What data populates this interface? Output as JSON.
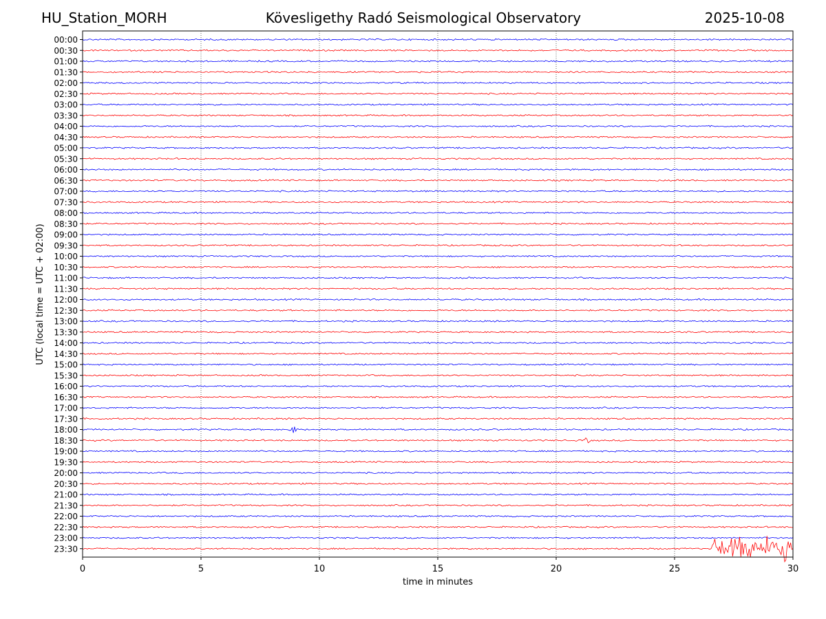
{
  "header": {
    "station": "HU_Station_MORH",
    "observatory": "Kövesligethy Radó Seismological Observatory",
    "date": "2025-10-08"
  },
  "chart_data": {
    "type": "line",
    "title": "Kövesligethy Radó Seismological Observatory",
    "xlabel": "time in minutes",
    "ylabel": "UTC (local time = UTC + 02:00)",
    "xlim": [
      0,
      30
    ],
    "xticks": [
      0,
      5,
      10,
      15,
      20,
      25,
      30
    ],
    "grid_x": true,
    "colors": {
      "even_row": "#0000ff",
      "odd_row": "#ff0000"
    },
    "rows": [
      "00:00",
      "00:30",
      "01:00",
      "01:30",
      "02:00",
      "02:30",
      "03:00",
      "03:30",
      "04:00",
      "04:30",
      "05:00",
      "05:30",
      "06:00",
      "06:30",
      "07:00",
      "07:30",
      "08:00",
      "08:30",
      "09:00",
      "09:30",
      "10:00",
      "10:30",
      "11:00",
      "11:30",
      "12:00",
      "12:30",
      "13:00",
      "13:30",
      "14:00",
      "14:30",
      "15:00",
      "15:30",
      "16:00",
      "16:30",
      "17:00",
      "17:30",
      "18:00",
      "18:30",
      "19:00",
      "19:30",
      "20:00",
      "20:30",
      "21:00",
      "21:30",
      "22:00",
      "22:30",
      "23:00",
      "23:30"
    ],
    "noise_amplitude_rows": 0.06,
    "events": [
      {
        "row": "18:00",
        "minute": 8.9,
        "amplitude_rows": 0.35
      },
      {
        "row": "18:30",
        "minute": 21.3,
        "amplitude_rows": 0.3
      },
      {
        "row": "23:30",
        "minute_start": 26.6,
        "minute_end": 30,
        "amplitude_rows": 1.3,
        "note": "high amplitude noise burst"
      }
    ]
  }
}
